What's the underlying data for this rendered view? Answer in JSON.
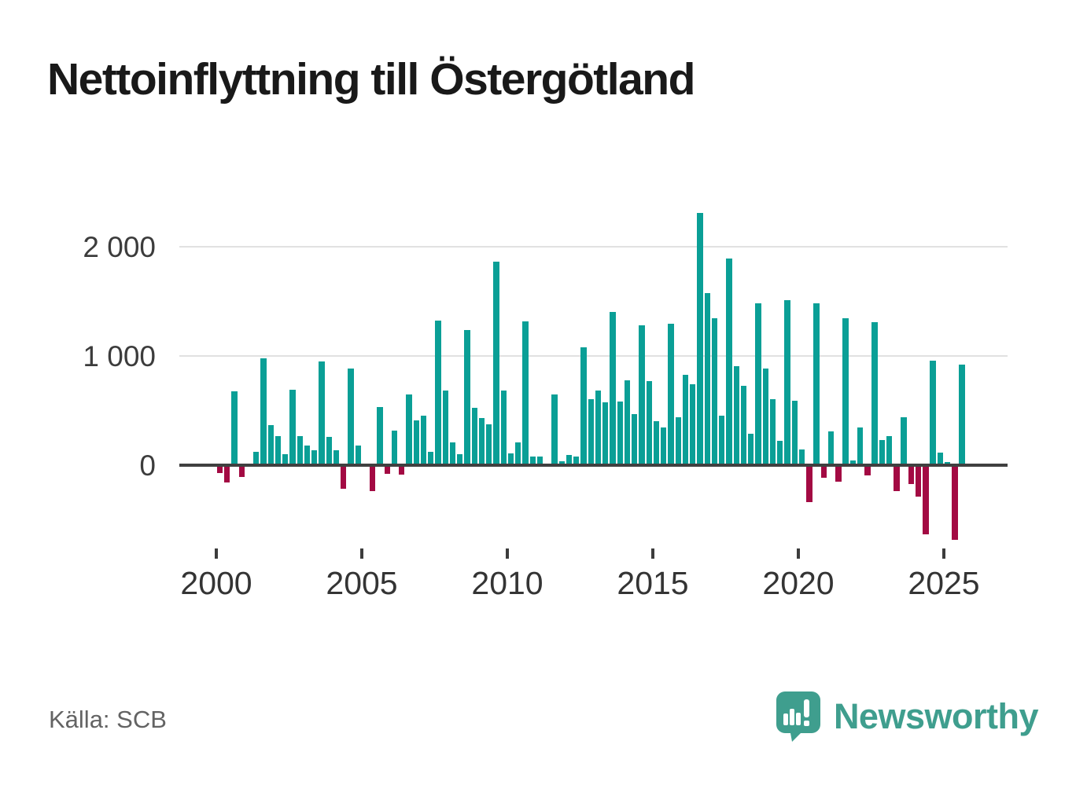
{
  "title": "Nettoinflyttning till Östergötland",
  "source": "Källa: SCB",
  "branding": {
    "logo_text": "Newsworthy",
    "logo_icon": "newsworthy-speech-bubble-bar-chart-icon"
  },
  "colors": {
    "positive": "#0a9f96",
    "negative": "#a30a43",
    "grid": "#e1e1e1",
    "zero_axis": "#404040",
    "tick": "#3c3c3c",
    "brand": "#3f9e8e"
  },
  "chart_data": {
    "type": "bar",
    "period": "quarterly",
    "start_period": "2000-Q1",
    "end_period": "2025-Q3",
    "title": "Nettoinflyttning till Östergötland",
    "xlabel": "",
    "ylabel": "",
    "grid": "horizontal",
    "ylim": [
      -700,
      2400
    ],
    "y_ticks": [
      {
        "value": 0,
        "label": "0"
      },
      {
        "value": 1000,
        "label": "1 000"
      },
      {
        "value": 2000,
        "label": "2 000"
      }
    ],
    "x_ticks": [
      {
        "year": 2000,
        "label": "2000"
      },
      {
        "year": 2005,
        "label": "2005"
      },
      {
        "year": 2010,
        "label": "2010"
      },
      {
        "year": 2015,
        "label": "2015"
      },
      {
        "year": 2020,
        "label": "2020"
      },
      {
        "year": 2025,
        "label": "2025"
      }
    ],
    "values": [
      -60,
      -140,
      672,
      -96,
      0,
      115,
      971,
      359,
      258,
      96,
      682,
      258,
      175,
      127,
      945,
      251,
      127,
      -203,
      875,
      172,
      0,
      -220,
      523,
      -61,
      309,
      -70,
      637,
      406,
      445,
      112,
      1314,
      674,
      204,
      97,
      1229,
      518,
      426,
      370,
      1856,
      678,
      103,
      199,
      1306,
      70,
      75,
      0,
      643,
      30,
      89,
      73,
      1072,
      598,
      677,
      569,
      1395,
      578,
      771,
      458,
      1275,
      761,
      395,
      337,
      1285,
      434,
      822,
      733,
      2299,
      1564,
      1340,
      446,
      1880,
      896,
      720,
      277,
      1475,
      880,
      600,
      217,
      1505,
      580,
      137,
      -322,
      1475,
      -100,
      300,
      -133,
      1338,
      35,
      341,
      -80,
      1300,
      220,
      257,
      -225,
      432,
      -155,
      -275,
      -615,
      950,
      105,
      25,
      -665,
      911
    ]
  }
}
